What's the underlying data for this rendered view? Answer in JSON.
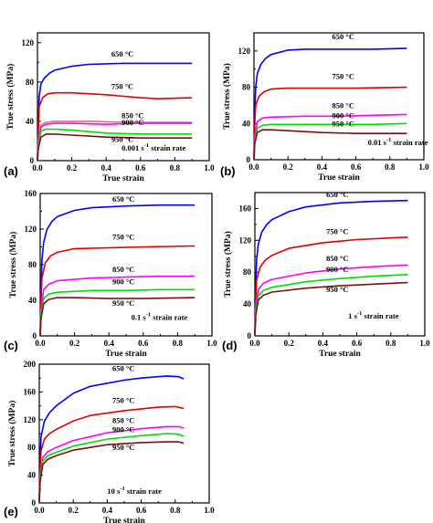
{
  "chart_data": [
    {
      "type": "line",
      "panel": "(a)",
      "xlabel": "True strain",
      "ylabel": "True stress (MPa)",
      "xlim": [
        0.0,
        1.0
      ],
      "ylim": [
        0,
        130
      ],
      "xticks": [
        0.0,
        0.2,
        0.4,
        0.6,
        0.8,
        1.0
      ],
      "yticks": [
        0,
        40,
        80,
        120
      ],
      "rate_label": {
        "pre": "0.001 s",
        "sup": "-1",
        "post": " strain rate"
      },
      "series": [
        {
          "name": "650 °C",
          "color": "#0000ff",
          "x": [
            0.0,
            0.005,
            0.01,
            0.02,
            0.04,
            0.07,
            0.1,
            0.2,
            0.3,
            0.5,
            0.7,
            0.9
          ],
          "y": [
            0,
            35,
            65,
            78,
            84,
            89,
            92,
            96,
            98,
            99,
            99,
            99
          ]
        },
        {
          "name": "750 °C",
          "color": "#e00000",
          "x": [
            0.0,
            0.005,
            0.01,
            0.03,
            0.06,
            0.1,
            0.2,
            0.4,
            0.6,
            0.7,
            0.9
          ],
          "y": [
            0,
            30,
            55,
            64,
            68,
            69,
            69,
            67,
            64,
            63,
            64
          ]
        },
        {
          "name": "850 °C",
          "color": "#cc7777",
          "x": [
            0.0,
            0.005,
            0.02,
            0.05,
            0.1,
            0.3,
            0.5,
            0.7,
            0.9
          ],
          "y": [
            0,
            20,
            36,
            39,
            40,
            40,
            39,
            39,
            39
          ]
        },
        {
          "name": "900 °C",
          "color": "#ff00ff",
          "x": [
            0.0,
            0.005,
            0.02,
            0.05,
            0.1,
            0.2,
            0.4,
            0.6,
            0.9
          ],
          "y": [
            0,
            18,
            34,
            37,
            38,
            38,
            37,
            38,
            38
          ]
        },
        {
          "name": "",
          "color": "#00dd00",
          "x": [
            0.0,
            0.005,
            0.02,
            0.05,
            0.1,
            0.2,
            0.4,
            0.6,
            0.9
          ],
          "y": [
            0,
            15,
            30,
            32,
            32,
            31,
            28,
            27,
            27
          ]
        },
        {
          "name": "950 °C",
          "color": "#7a1010",
          "x": [
            0.0,
            0.005,
            0.02,
            0.05,
            0.1,
            0.2,
            0.4,
            0.6,
            0.9
          ],
          "y": [
            0,
            12,
            24,
            27,
            27,
            26,
            24,
            23,
            23
          ]
        }
      ]
    },
    {
      "type": "line",
      "panel": "(b)",
      "xlabel": "True strain",
      "ylabel": "True stress (MPa)",
      "xlim": [
        0.0,
        1.0
      ],
      "ylim": [
        0,
        140
      ],
      "xticks": [
        0.0,
        0.2,
        0.4,
        0.6,
        0.8,
        1.0
      ],
      "yticks": [
        0,
        40,
        80,
        120
      ],
      "rate_label": {
        "pre": "0.01 s",
        "sup": "-1",
        "post": " strain rate"
      },
      "series": [
        {
          "name": "650 °C",
          "color": "#0000ff",
          "x": [
            0.0,
            0.005,
            0.01,
            0.02,
            0.04,
            0.07,
            0.1,
            0.2,
            0.3,
            0.5,
            0.7,
            0.9
          ],
          "y": [
            0,
            50,
            80,
            95,
            105,
            112,
            116,
            121,
            122,
            122,
            122,
            123
          ]
        },
        {
          "name": "750 °C",
          "color": "#e00000",
          "x": [
            0.0,
            0.005,
            0.01,
            0.03,
            0.06,
            0.1,
            0.2,
            0.4,
            0.6,
            0.9
          ],
          "y": [
            0,
            40,
            60,
            70,
            75,
            78,
            79,
            79,
            79,
            80
          ]
        },
        {
          "name": "850 °C",
          "color": "#ff00ff",
          "x": [
            0.0,
            0.005,
            0.02,
            0.05,
            0.1,
            0.3,
            0.5,
            0.7,
            0.9
          ],
          "y": [
            0,
            25,
            42,
            46,
            47,
            48,
            48,
            49,
            50
          ]
        },
        {
          "name": "900 °C",
          "color": "#00dd00",
          "x": [
            0.0,
            0.005,
            0.02,
            0.05,
            0.1,
            0.3,
            0.5,
            0.7,
            0.9
          ],
          "y": [
            0,
            20,
            35,
            38,
            39,
            39,
            39,
            39,
            40
          ]
        },
        {
          "name": "950 °C",
          "color": "#7a1010",
          "x": [
            0.0,
            0.005,
            0.02,
            0.05,
            0.1,
            0.2,
            0.4,
            0.6,
            0.9
          ],
          "y": [
            0,
            18,
            30,
            33,
            33,
            32,
            30,
            29,
            29
          ]
        }
      ]
    },
    {
      "type": "line",
      "panel": "(c)",
      "xlabel": "True strain",
      "ylabel": "True stress (MPa)",
      "xlim": [
        0.0,
        1.0
      ],
      "ylim": [
        0,
        160
      ],
      "xticks": [
        0.0,
        0.2,
        0.4,
        0.6,
        0.8,
        1.0
      ],
      "yticks": [
        0,
        40,
        80,
        120,
        160
      ],
      "rate_label": {
        "pre": "0.1 s",
        "sup": "-1",
        "post": " strain rate"
      },
      "series": [
        {
          "name": "650 °C",
          "color": "#0000ff",
          "x": [
            0.0,
            0.005,
            0.01,
            0.02,
            0.04,
            0.07,
            0.1,
            0.2,
            0.3,
            0.5,
            0.7,
            0.9
          ],
          "y": [
            0,
            50,
            85,
            105,
            120,
            129,
            134,
            141,
            144,
            146,
            147,
            147
          ]
        },
        {
          "name": "750 °C",
          "color": "#e00000",
          "x": [
            0.0,
            0.005,
            0.01,
            0.03,
            0.06,
            0.1,
            0.2,
            0.4,
            0.6,
            0.9
          ],
          "y": [
            0,
            40,
            65,
            82,
            90,
            94,
            98,
            99,
            100,
            101
          ]
        },
        {
          "name": "850 °C",
          "color": "#ff00ff",
          "x": [
            0.0,
            0.005,
            0.02,
            0.05,
            0.1,
            0.3,
            0.5,
            0.7,
            0.9
          ],
          "y": [
            0,
            30,
            52,
            58,
            62,
            65,
            66,
            67,
            67
          ]
        },
        {
          "name": "900 °C",
          "color": "#00dd00",
          "x": [
            0.0,
            0.005,
            0.02,
            0.05,
            0.1,
            0.3,
            0.5,
            0.7,
            0.9
          ],
          "y": [
            0,
            25,
            42,
            47,
            49,
            51,
            51,
            52,
            52
          ]
        },
        {
          "name": "950 °C",
          "color": "#7a1010",
          "x": [
            0.0,
            0.005,
            0.02,
            0.05,
            0.1,
            0.2,
            0.4,
            0.6,
            0.9
          ],
          "y": [
            0,
            20,
            36,
            41,
            43,
            43,
            42,
            42,
            43
          ]
        }
      ]
    },
    {
      "type": "line",
      "panel": "(d)",
      "xlabel": "True strain",
      "ylabel": "True stress (MPa)",
      "xlim": [
        0.0,
        1.0
      ],
      "ylim": [
        0,
        180
      ],
      "xticks": [
        0.0,
        0.2,
        0.4,
        0.6,
        0.8,
        1.0
      ],
      "yticks": [
        0,
        40,
        80,
        120,
        160
      ],
      "rate_label": {
        "pre": "1 s",
        "sup": "-1",
        "post": " strain rate"
      },
      "series": [
        {
          "name": "650 °C",
          "color": "#0000ff",
          "x": [
            0.0,
            0.005,
            0.01,
            0.02,
            0.04,
            0.07,
            0.1,
            0.2,
            0.3,
            0.5,
            0.7,
            0.9
          ],
          "y": [
            0,
            60,
            95,
            115,
            130,
            140,
            146,
            156,
            162,
            167,
            169,
            170
          ]
        },
        {
          "name": "750 °C",
          "color": "#e00000",
          "x": [
            0.0,
            0.005,
            0.01,
            0.03,
            0.06,
            0.1,
            0.2,
            0.4,
            0.6,
            0.9
          ],
          "y": [
            0,
            45,
            70,
            86,
            95,
            101,
            110,
            117,
            121,
            124
          ]
        },
        {
          "name": "850 °C",
          "color": "#ff00ff",
          "x": [
            0.0,
            0.005,
            0.02,
            0.05,
            0.1,
            0.3,
            0.5,
            0.7,
            0.9
          ],
          "y": [
            0,
            35,
            58,
            66,
            71,
            79,
            84,
            87,
            89
          ]
        },
        {
          "name": "900 °C",
          "color": "#00dd00",
          "x": [
            0.0,
            0.005,
            0.02,
            0.05,
            0.1,
            0.3,
            0.5,
            0.7,
            0.9
          ],
          "y": [
            0,
            30,
            50,
            57,
            61,
            68,
            72,
            75,
            77
          ]
        },
        {
          "name": "950 °C",
          "color": "#7a1010",
          "x": [
            0.0,
            0.005,
            0.02,
            0.05,
            0.1,
            0.3,
            0.5,
            0.7,
            0.9
          ],
          "y": [
            0,
            25,
            45,
            51,
            55,
            60,
            63,
            65,
            67
          ]
        }
      ]
    },
    {
      "type": "line",
      "panel": "(e)",
      "xlabel": "True strain",
      "ylabel": "True stress (MPa)",
      "xlim": [
        0.0,
        1.0
      ],
      "ylim": [
        0,
        200
      ],
      "xticks": [
        0.0,
        0.2,
        0.4,
        0.6,
        0.8,
        1.0
      ],
      "yticks": [
        0,
        40,
        80,
        120,
        160,
        200
      ],
      "rate_label": {
        "pre": "10 s",
        "sup": "-1",
        "post": " strain rate"
      },
      "series": [
        {
          "name": "650 °C",
          "color": "#0000ff",
          "x": [
            0.0,
            0.005,
            0.01,
            0.03,
            0.06,
            0.1,
            0.2,
            0.3,
            0.5,
            0.6,
            0.75,
            0.82,
            0.85
          ],
          "y": [
            0,
            60,
            95,
            118,
            130,
            140,
            158,
            168,
            177,
            180,
            183,
            182,
            179
          ]
        },
        {
          "name": "750 °C",
          "color": "#e00000",
          "x": [
            0.0,
            0.005,
            0.01,
            0.03,
            0.06,
            0.1,
            0.2,
            0.3,
            0.5,
            0.7,
            0.8,
            0.85
          ],
          "y": [
            0,
            50,
            75,
            92,
            100,
            106,
            118,
            126,
            133,
            138,
            139,
            136
          ]
        },
        {
          "name": "850 °C",
          "color": "#ff00ff",
          "x": [
            0.0,
            0.005,
            0.02,
            0.05,
            0.1,
            0.2,
            0.4,
            0.6,
            0.75,
            0.82,
            0.85
          ],
          "y": [
            0,
            40,
            65,
            74,
            80,
            90,
            101,
            107,
            110,
            110,
            108
          ]
        },
        {
          "name": "900 °C",
          "color": "#00dd00",
          "x": [
            0.0,
            0.005,
            0.02,
            0.05,
            0.1,
            0.2,
            0.4,
            0.6,
            0.75,
            0.82,
            0.85
          ],
          "y": [
            0,
            35,
            60,
            68,
            73,
            82,
            92,
            97,
            100,
            99,
            96
          ]
        },
        {
          "name": "950 °C",
          "color": "#7a1010",
          "x": [
            0.0,
            0.005,
            0.02,
            0.05,
            0.1,
            0.2,
            0.4,
            0.6,
            0.75,
            0.82,
            0.85
          ],
          "y": [
            0,
            30,
            55,
            63,
            68,
            76,
            84,
            87,
            88,
            88,
            86
          ]
        }
      ]
    }
  ]
}
